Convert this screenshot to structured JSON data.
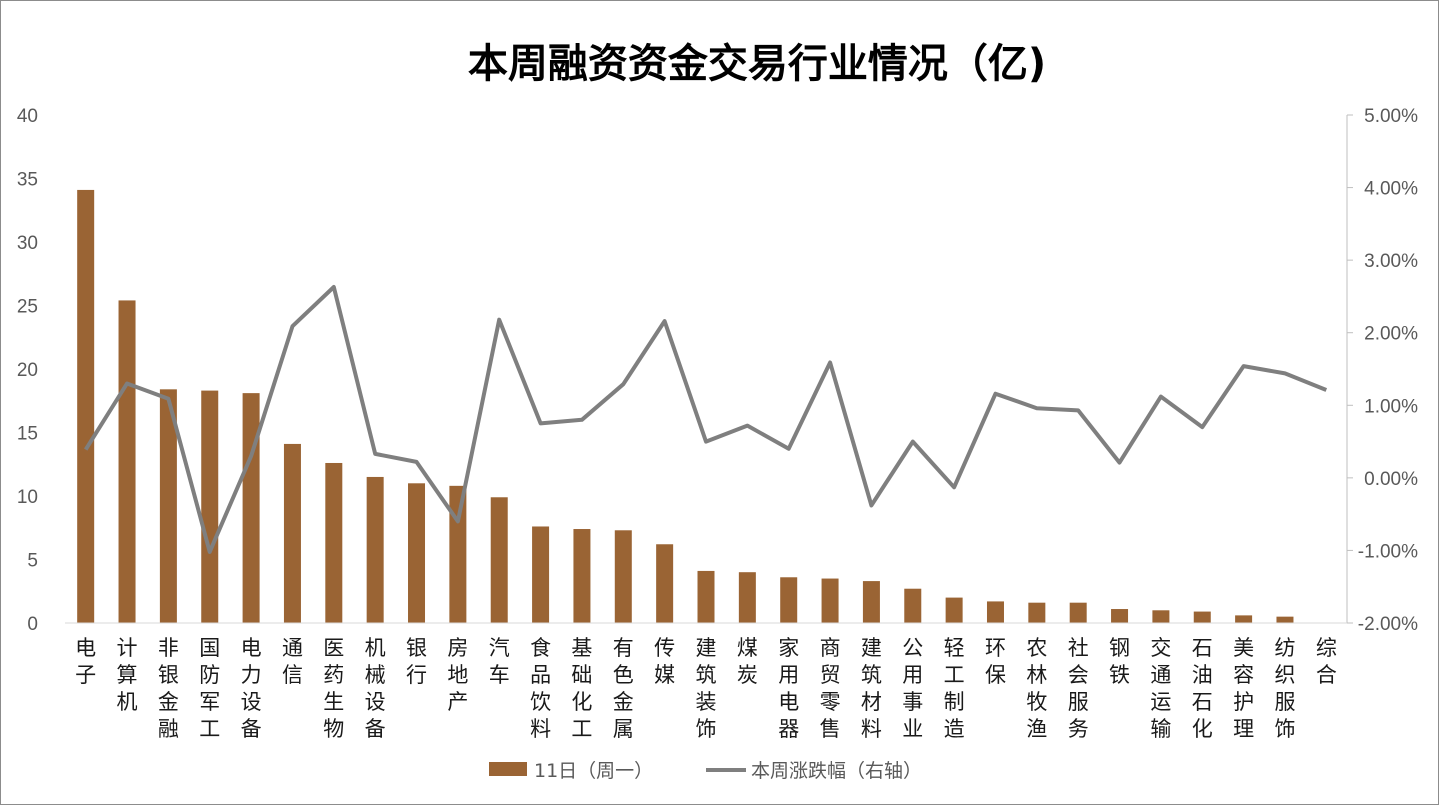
{
  "chart_data": {
    "type": "bar",
    "title": "本周融资资金交易行业情况（亿)",
    "categories": [
      "电子",
      "计算机",
      "非银金融",
      "国防军工",
      "电力设备",
      "通信",
      "医药生物",
      "机械设备",
      "银行",
      "房地产",
      "汽车",
      "食品饮料",
      "基础化工",
      "有色金属",
      "传媒",
      "建筑装饰",
      "煤炭",
      "家用电器",
      "商贸零售",
      "建筑材料",
      "公用事业",
      "轻工制造",
      "环保",
      "农林牧渔",
      "社会服务",
      "钢铁",
      "交通运输",
      "石油石化",
      "美容护理",
      "纺织服饰",
      "综合"
    ],
    "series": [
      {
        "name": "11日（周一）",
        "type": "bar",
        "axis": "left",
        "color": "#9a6434",
        "values": [
          34.1,
          25.4,
          18.4,
          18.3,
          18.1,
          14.1,
          12.6,
          11.5,
          11.0,
          10.8,
          9.9,
          7.6,
          7.4,
          7.3,
          6.2,
          4.1,
          4.0,
          3.6,
          3.5,
          3.3,
          2.7,
          2.0,
          1.7,
          1.6,
          1.6,
          1.1,
          1.0,
          0.9,
          0.6,
          0.5,
          0.0
        ]
      },
      {
        "name": "本周涨跌幅（右轴）",
        "type": "line",
        "axis": "right",
        "color": "#7f7f7f",
        "values": [
          0.39,
          1.3,
          1.09,
          -1.02,
          0.3,
          2.09,
          2.63,
          0.33,
          0.22,
          -0.6,
          2.18,
          0.75,
          0.8,
          1.29,
          2.16,
          0.5,
          0.72,
          0.4,
          1.59,
          -0.38,
          0.5,
          -0.13,
          1.16,
          0.96,
          0.93,
          0.21,
          1.12,
          0.7,
          1.54,
          1.44,
          1.21
        ]
      }
    ],
    "left_axis": {
      "min": 0,
      "max": 40,
      "step": 5,
      "labels": [
        "0",
        "5",
        "10",
        "15",
        "20",
        "25",
        "30",
        "35",
        "40"
      ]
    },
    "right_axis": {
      "min": -2,
      "max": 5,
      "step": 1,
      "labels": [
        "-2.00%",
        "-1.00%",
        "0.00%",
        "1.00%",
        "2.00%",
        "3.00%",
        "4.00%",
        "5.00%"
      ]
    },
    "grid": false,
    "legend_position": "bottom"
  }
}
